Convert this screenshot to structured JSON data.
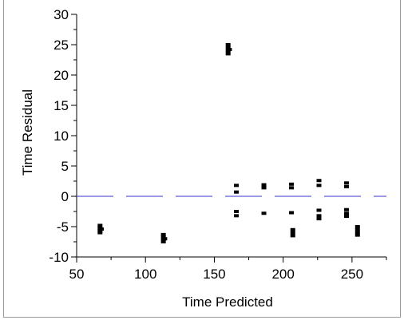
{
  "chart_data": {
    "type": "scatter",
    "title": "",
    "xlabel": "Time Predicted",
    "ylabel": "Time Residual",
    "xlim": [
      50,
      275
    ],
    "ylim": [
      -10,
      30
    ],
    "x_ticks": [
      "50",
      "100",
      "150",
      "200",
      "250"
    ],
    "x_tick_values": [
      50,
      100,
      150,
      200,
      250
    ],
    "y_ticks": [
      "30",
      "25",
      "20",
      "15",
      "10",
      "5",
      "0",
      "-5",
      "-10"
    ],
    "y_tick_values": [
      30,
      25,
      20,
      15,
      10,
      5,
      0,
      -5,
      -10
    ],
    "reference_line": {
      "y": 0,
      "style": "dashed",
      "color": "#3333cc"
    },
    "marker_color": "#000000",
    "grid": false,
    "series": [
      {
        "points": [
          [
            67,
            -4.8
          ],
          [
            67,
            -5.2
          ],
          [
            67,
            -5.6
          ],
          [
            67,
            -6.0
          ],
          [
            68,
            -5.4
          ],
          [
            113,
            -6.3
          ],
          [
            113,
            -6.7
          ],
          [
            113,
            -7.1
          ],
          [
            113,
            -7.5
          ],
          [
            114,
            -7.0
          ],
          [
            160,
            25.0
          ],
          [
            160,
            24.5
          ],
          [
            160,
            24.0
          ],
          [
            160,
            23.5
          ],
          [
            161,
            24.2
          ],
          [
            166,
            1.8
          ],
          [
            166,
            0.7
          ],
          [
            166,
            -2.5
          ],
          [
            166,
            -3.2
          ],
          [
            186,
            1.9
          ],
          [
            186,
            1.4
          ],
          [
            186,
            -2.8
          ],
          [
            206,
            2.0
          ],
          [
            206,
            1.4
          ],
          [
            206,
            -2.7
          ],
          [
            207,
            -5.5
          ],
          [
            207,
            -6.0
          ],
          [
            207,
            -6.5
          ],
          [
            226,
            2.6
          ],
          [
            226,
            1.8
          ],
          [
            226,
            -2.3
          ],
          [
            226,
            -3.2
          ],
          [
            226,
            -3.7
          ],
          [
            246,
            2.2
          ],
          [
            246,
            1.6
          ],
          [
            246,
            -2.2
          ],
          [
            246,
            -2.8
          ],
          [
            246,
            -3.3
          ],
          [
            254,
            -5.0
          ],
          [
            254,
            -5.5
          ],
          [
            254,
            -6.0
          ],
          [
            254,
            -6.4
          ]
        ]
      }
    ]
  }
}
